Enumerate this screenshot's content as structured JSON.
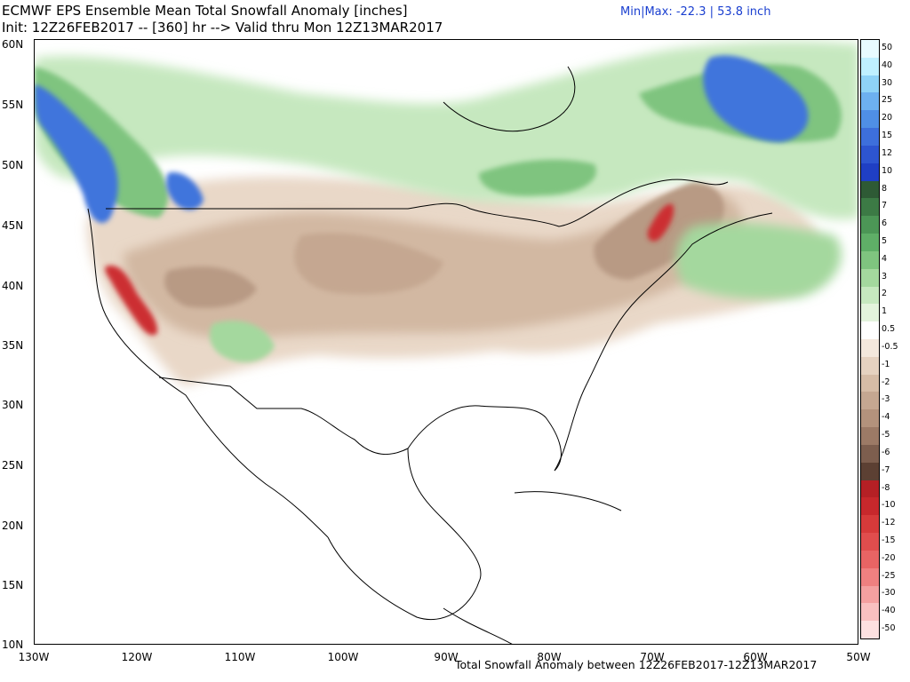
{
  "header": {
    "title": "ECMWF EPS Ensemble Mean Total Snowfall Anomaly [inches]",
    "init": "Init: 12Z26FEB2017 -- [360] hr --> Valid thru Mon 12Z13MAR2017",
    "minmax": "Min|Max: -22.3 | 53.8 inch"
  },
  "footer": "Total Snowfall Anomaly between 12Z26FEB2017-12Z13MAR2017",
  "lat_labels": [
    "60N",
    "55N",
    "50N",
    "45N",
    "40N",
    "35N",
    "30N",
    "25N",
    "20N",
    "15N",
    "10N"
  ],
  "lon_labels": [
    "130W",
    "120W",
    "110W",
    "100W",
    "90W",
    "80W",
    "70W",
    "60W",
    "50W"
  ],
  "legend": {
    "labels": [
      "50",
      "40",
      "30",
      "25",
      "20",
      "15",
      "12",
      "10",
      "8",
      "7",
      "6",
      "5",
      "4",
      "3",
      "2",
      "1",
      "0.5",
      "-0.5",
      "-1",
      "-2",
      "-3",
      "-4",
      "-5",
      "-6",
      "-7",
      "-8",
      "-10",
      "-12",
      "-15",
      "-20",
      "-25",
      "-30",
      "-40",
      "-50"
    ],
    "colors": [
      "#e8fbff",
      "#bff0ff",
      "#8fd3f7",
      "#6db0f0",
      "#4f8fe6",
      "#3d6fdb",
      "#2d55d0",
      "#1f3fc4",
      "#2e5a35",
      "#3c7a45",
      "#4c9656",
      "#5fae67",
      "#7fc47f",
      "#a4d89e",
      "#c6e8bf",
      "#e3f3dc",
      "#ffffff",
      "#f4e8dc",
      "#e6d2c0",
      "#d6bca6",
      "#c5a791",
      "#b3927c",
      "#9c7a66",
      "#7d5e4e",
      "#5c4033",
      "#b52025",
      "#c7282c",
      "#d63a3a",
      "#e04d4d",
      "#e86464",
      "#ef8080",
      "#f4a0a0",
      "#f9c0c0",
      "#fde0e0"
    ]
  },
  "colors": {
    "brown_light": "#e9d8c8",
    "brown_mid": "#d2b8a2",
    "brown_dark": "#b89a84",
    "brown_darker": "#a07e68",
    "green_light": "#c6e8bf",
    "green_mid": "#7fc47f",
    "green_dark": "#3c8a4a",
    "blue": "#3f74dc",
    "blue_dark": "#2d55d0",
    "red": "#cc2e33"
  }
}
